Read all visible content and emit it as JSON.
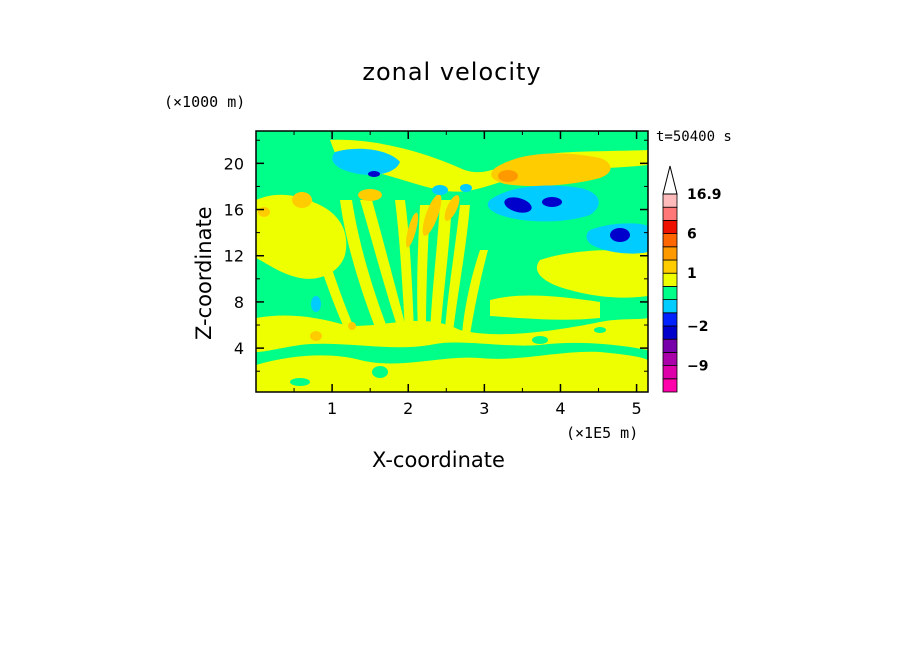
{
  "chart_data": {
    "type": "heatmap",
    "title": "zonal velocity",
    "xlabel": "X-coordinate",
    "ylabel": "Z-coordinate",
    "x_scale_label": "(×1E5 m)",
    "y_scale_label": "(×1000 m)",
    "time_label": "t=50400 s",
    "xlim": [
      0,
      5.15
    ],
    "ylim": [
      0.2,
      22.8
    ],
    "xticks": [
      1,
      2,
      3,
      4,
      5
    ],
    "yticks": [
      4,
      8,
      12,
      16,
      20
    ],
    "colorbar": {
      "levels": [
        -16,
        -12,
        -9,
        -6,
        -4,
        -2,
        -1,
        -0.5,
        0.5,
        1,
        2,
        4,
        6,
        9,
        12,
        16.9
      ],
      "colors": [
        "#ff00aa",
        "#dd00aa",
        "#aa00aa",
        "#7700aa",
        "#0000cc",
        "#0022ff",
        "#00ccff",
        "#00ff88",
        "#eeff00",
        "#ffcc00",
        "#ff9900",
        "#ff6600",
        "#ee1100",
        "#ff7777",
        "#ffbbbb"
      ],
      "labels": [
        {
          "value": "16.9",
          "level": 16.9
        },
        {
          "value": "6",
          "level": 6
        },
        {
          "value": "1",
          "level": 1
        },
        {
          "value": "-2",
          "level": -2
        },
        {
          "value": "-9",
          "level": -9
        }
      ]
    }
  }
}
